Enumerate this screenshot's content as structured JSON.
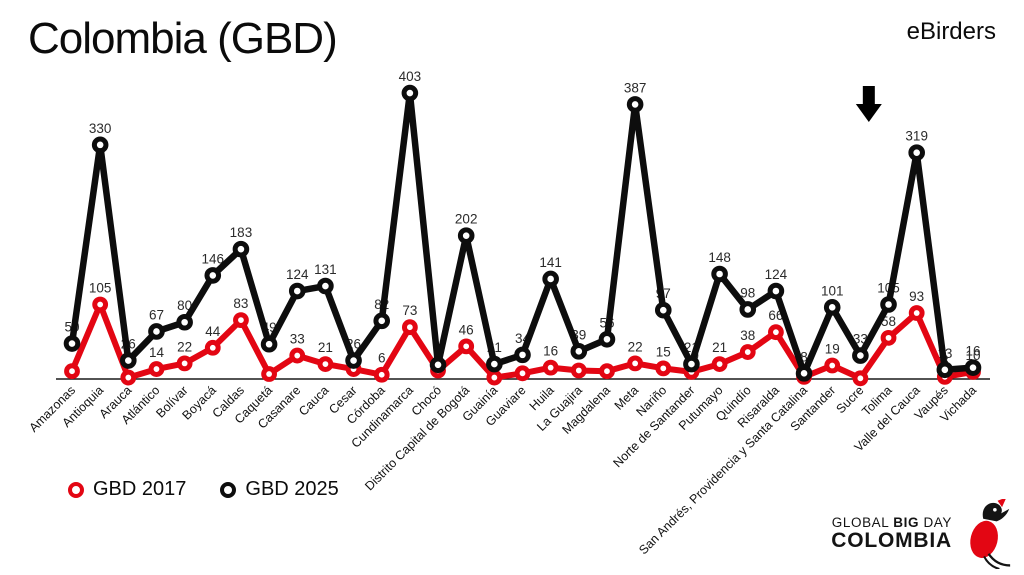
{
  "header": {
    "title": "Colombia (GBD)",
    "watermark": "eBirders"
  },
  "legend": {
    "items": [
      {
        "label": "GBD 2017",
        "color": "#e30613"
      },
      {
        "label": "GBD 2025",
        "color": "#0d0d0d"
      }
    ]
  },
  "logo": {
    "global": "GLOBAL",
    "big": "BIG",
    "day": "DAY",
    "colombia": "COLOMBIA"
  },
  "chart_data": {
    "type": "line",
    "title": "Colombia (GBD)",
    "xlabel": "",
    "ylabel": "",
    "ylim": [
      0,
      420
    ],
    "grid": false,
    "legend_position": "bottom-left",
    "point_style": "open-circle",
    "categories": [
      "Amazonas",
      "Antioquia",
      "Arauca",
      "Atlántico",
      "Bolívar",
      "Boyacá",
      "Caldas",
      "Caquetá",
      "Casanare",
      "Cauca",
      "Cesar",
      "Córdoba",
      "Cundinamarca",
      "Chocó",
      "Distrito Capital de Bogotá",
      "Guainía",
      "Guaviare",
      "Huila",
      "La Guajira",
      "Magdalena",
      "Meta",
      "Nariño",
      "Norte de Santander",
      "Putumayo",
      "Quindío",
      "Risaralda",
      "San Andrés, Providencia y Santa Catalina",
      "Santander",
      "Sucre",
      "Tolima",
      "Valle del Cauca",
      "Vaupés",
      "Vichada"
    ],
    "series": [
      {
        "name": "GBD 2017",
        "color": "#e30613",
        "values": [
          11,
          105,
          2,
          14,
          22,
          44,
          83,
          7,
          33,
          21,
          14,
          6,
          73,
          12,
          46,
          2,
          8,
          16,
          12,
          11,
          22,
          15,
          10,
          21,
          38,
          66,
          3,
          19,
          1,
          58,
          93,
          3,
          10
        ],
        "labels": [
          "",
          "105",
          "",
          "14",
          "22",
          "44",
          "83",
          "",
          "33",
          "21",
          "14",
          "6",
          "73",
          "",
          "46",
          "",
          "",
          "16",
          "",
          "",
          "22",
          "15",
          "10",
          "21",
          "38",
          "66",
          "",
          "19",
          "",
          "58",
          "93",
          "3",
          "10"
        ]
      },
      {
        "name": "GBD 2025",
        "color": "#0d0d0d",
        "values": [
          50,
          330,
          26,
          67,
          80,
          146,
          183,
          49,
          124,
          131,
          26,
          82,
          403,
          20,
          202,
          21,
          34,
          141,
          39,
          56,
          387,
          97,
          21,
          148,
          98,
          124,
          8,
          101,
          33,
          105,
          319,
          13,
          16
        ],
        "labels": [
          "50",
          "330",
          "26",
          "67",
          "80",
          "146",
          "183",
          "49",
          "124",
          "131",
          "26",
          "82",
          "403",
          "",
          "202",
          "21",
          "34",
          "141",
          "39",
          "56",
          "387",
          "97",
          "21",
          "148",
          "98",
          "124",
          "8",
          "101",
          "33",
          "105",
          "319",
          "13",
          "16"
        ]
      }
    ],
    "annotations": [
      {
        "type": "down-arrow",
        "index": 28.3
      }
    ]
  }
}
